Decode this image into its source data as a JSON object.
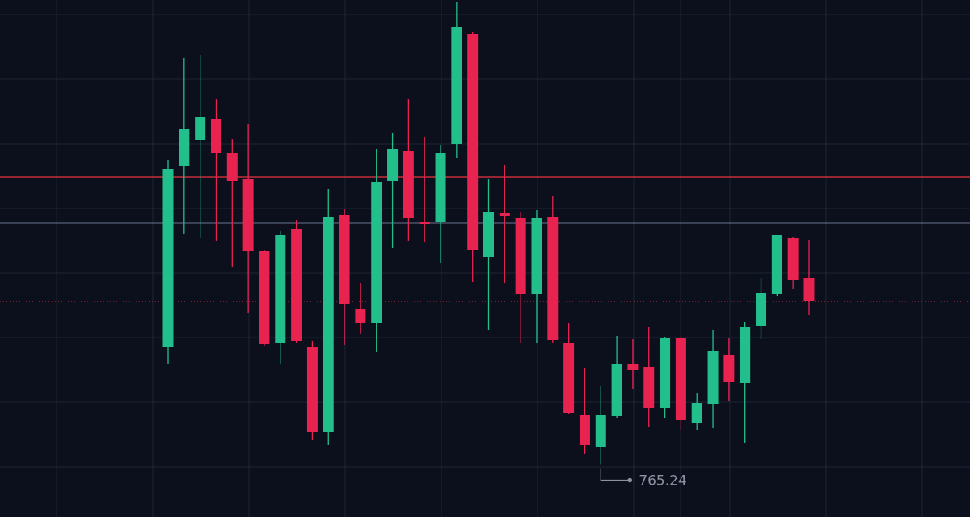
{
  "chart_data": {
    "type": "candlestick",
    "open": [
      838,
      950,
      966.5,
      979.5,
      958.5,
      942,
      897.5,
      841,
      911,
      838.5,
      785.5,
      920,
      862,
      853,
      941,
      959.5,
      915.5,
      915.5,
      964,
      1032,
      894,
      921,
      918,
      871,
      918.5,
      841,
      796,
      776.5,
      795.5,
      828,
      826,
      800.5,
      843.5,
      791,
      803,
      833,
      816,
      851,
      871,
      905.5,
      881
    ],
    "high": [
      954,
      1017,
      1019,
      992,
      967,
      976.5,
      898.5,
      910,
      917,
      842,
      936,
      923.5,
      878,
      960.5,
      970.5,
      991.5,
      968,
      963,
      1052,
      1033,
      942,
      951,
      922,
      923,
      931.5,
      853,
      825,
      814,
      845,
      843,
      850.5,
      844.5,
      844.5,
      809.5,
      849,
      844,
      854,
      881,
      907.5,
      906,
      904.5
    ],
    "low": [
      828,
      908,
      905.5,
      904,
      888,
      859,
      839,
      828,
      841,
      780.5,
      777.5,
      839.5,
      846,
      835,
      899.5,
      904,
      903,
      890.5,
      955,
      878.5,
      849,
      878,
      841,
      841,
      841,
      796.5,
      772,
      765.24,
      794.5,
      812,
      789,
      794,
      787,
      787,
      788,
      804.5,
      779,
      843,
      870,
      874,
      858
    ],
    "close": [
      948.5,
      973,
      980.5,
      958,
      941,
      897.5,
      840,
      907.5,
      842,
      785.5,
      918.5,
      865,
      853,
      940.5,
      960.5,
      918,
      914.5,
      958,
      1036,
      898.5,
      922,
      919,
      871,
      918,
      842.5,
      797.5,
      777.5,
      796,
      827.5,
      824,
      800.5,
      843.5,
      793,
      803.5,
      835.5,
      816.5,
      850.5,
      871.5,
      907.5,
      879.5,
      866.5
    ],
    "up_color": "#22bf8c",
    "down_color": "#e8234f",
    "ylim": [
      733,
      1053
    ],
    "yticks": [
      1044,
      1004,
      964,
      924,
      884,
      844,
      804,
      764
    ],
    "grid": true,
    "price_lines": [
      {
        "value": 943.5,
        "color": "#e8343f",
        "style": "solid"
      },
      {
        "value": 866.5,
        "color": "#e8343f",
        "style": "dotted"
      }
    ],
    "crosshair": {
      "index": 32,
      "value": 915,
      "color": "#6b7690"
    },
    "low_marker_index": 27
  }
}
